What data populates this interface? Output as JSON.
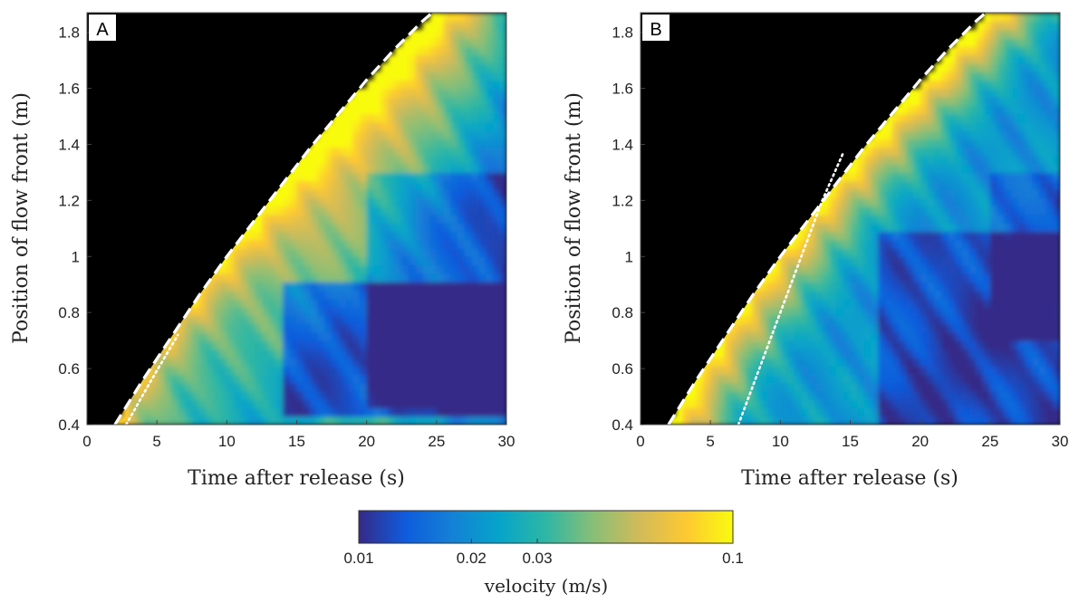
{
  "chart_data": [
    {
      "type": "heatmap",
      "panel_label": "A",
      "xlabel": "Time after release (s)",
      "ylabel": "Position of flow front (m)",
      "xlim": [
        0,
        30
      ],
      "ylim": [
        0.4,
        1.87
      ],
      "xticks": [
        0,
        5,
        10,
        15,
        20,
        25,
        30
      ],
      "yticks": [
        0.4,
        0.6,
        0.8,
        1,
        1.2,
        1.4,
        1.6,
        1.8
      ],
      "grid": false,
      "front_boundary_dashed": {
        "t": [
          2,
          4,
          6,
          8,
          10,
          12,
          14,
          16,
          18,
          20,
          22,
          24,
          24.7
        ],
        "pos": [
          0.4,
          0.56,
          0.71,
          0.86,
          1.0,
          1.13,
          1.26,
          1.39,
          1.51,
          1.63,
          1.74,
          1.84,
          1.87
        ]
      },
      "dotted_line": {
        "t": [
          2.8,
          4.5,
          6.5
        ],
        "pos": [
          0.4,
          0.55,
          0.72
        ]
      }
    },
    {
      "type": "heatmap",
      "panel_label": "B",
      "xlabel": "Time after release (s)",
      "ylabel": "Position of flow front (m)",
      "xlim": [
        0,
        30
      ],
      "ylim": [
        0.4,
        1.87
      ],
      "xticks": [
        0,
        5,
        10,
        15,
        20,
        25,
        30
      ],
      "yticks": [
        0.4,
        0.6,
        0.8,
        1,
        1.2,
        1.4,
        1.6,
        1.8
      ],
      "grid": false,
      "front_boundary_dashed": {
        "t": [
          2,
          4,
          6,
          8,
          10,
          12,
          14,
          16,
          18,
          20,
          22,
          24,
          24.7
        ],
        "pos": [
          0.4,
          0.56,
          0.71,
          0.86,
          1.0,
          1.13,
          1.26,
          1.39,
          1.51,
          1.63,
          1.74,
          1.84,
          1.87
        ]
      },
      "dotted_line": {
        "t": [
          7.0,
          8.5,
          10.0,
          11.5,
          13.0,
          14.5
        ],
        "pos": [
          0.4,
          0.6,
          0.8,
          1.0,
          1.2,
          1.37
        ]
      }
    }
  ],
  "colorbar": {
    "label": "velocity (m/s)",
    "ticks": [
      {
        "value": 0.01,
        "label": "0.01"
      },
      {
        "value": 0.02,
        "label": "0.02"
      },
      {
        "value": 0.03,
        "label": "0.03"
      },
      {
        "value": 0.1,
        "label": "0.1"
      }
    ],
    "colormap": "parula",
    "colors": [
      "#352a87",
      "#0f5cdd",
      "#1481d6",
      "#06a4ca",
      "#2eb7a4",
      "#87bf77",
      "#d1bb59",
      "#fec832",
      "#f9fb0e"
    ]
  }
}
